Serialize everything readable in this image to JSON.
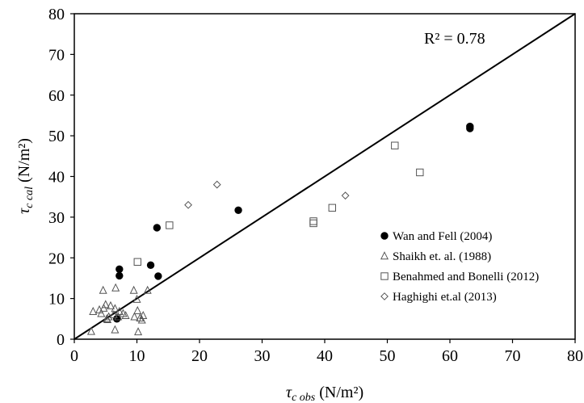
{
  "chart_data": {
    "type": "scatter",
    "x_label": {
      "symbol": "τ",
      "subscript": "c obs",
      "unit": "(N/m²)"
    },
    "y_label": {
      "symbol": "τ",
      "subscript": "c cal",
      "unit": "(N/m²)"
    },
    "annotation": "R² = 0.78",
    "xlim": [
      0,
      80
    ],
    "ylim": [
      0,
      80
    ],
    "xticks": [
      0,
      10,
      20,
      30,
      40,
      50,
      60,
      70,
      80
    ],
    "yticks": [
      0,
      10,
      20,
      30,
      40,
      50,
      60,
      70,
      80
    ],
    "grid": false,
    "legend": "lower right",
    "reference_line": {
      "x": [
        0,
        80
      ],
      "values": [
        0,
        80
      ],
      "color": "#000000"
    },
    "series": [
      {
        "name": "Wan and Fell (2004)",
        "marker": "circle",
        "color": "#000000",
        "x": [
          63.2,
          63.2,
          26.2,
          13.2,
          7.2,
          7.2,
          12.2,
          13.4,
          6.8
        ],
        "values": [
          52.3,
          51.8,
          31.7,
          27.4,
          17.2,
          15.6,
          18.2,
          15.5,
          5.0
        ]
      },
      {
        "name": "Shaikh et. al. (1988)",
        "marker": "triangle",
        "color": "#555555",
        "x": [
          2.7,
          3,
          4.3,
          4.6,
          4.7,
          5,
          5.2,
          5.5,
          5.8,
          6.3,
          6.5,
          6.6,
          6.5,
          7.2,
          7.8,
          8.2,
          9.5,
          9.6,
          10,
          10.1,
          10.2,
          10.5,
          11,
          11.7,
          4,
          5.3,
          7,
          10.8
        ],
        "values": [
          1.9,
          6.8,
          6.3,
          12,
          7.6,
          8.5,
          5,
          5.5,
          8.2,
          6,
          7.5,
          12.6,
          2.3,
          6.8,
          6.3,
          5.8,
          12,
          5.5,
          9.8,
          7,
          1.8,
          5.2,
          5.8,
          12,
          7.2,
          4.8,
          5.5,
          4.7
        ]
      },
      {
        "name": "Benahmed and Bonelli (2012)",
        "marker": "square",
        "color": "#555555",
        "x": [
          10.1,
          15.2,
          38.2,
          38.2,
          41.2,
          51.2,
          55.2
        ],
        "values": [
          19,
          28,
          29,
          28.5,
          32.3,
          47.6,
          41
        ]
      },
      {
        "name": "Haghighi et.al (2013)",
        "marker": "diamond",
        "color": "#555555",
        "x": [
          18.2,
          22.8,
          43.3
        ],
        "values": [
          33,
          38,
          35.3
        ]
      }
    ]
  }
}
